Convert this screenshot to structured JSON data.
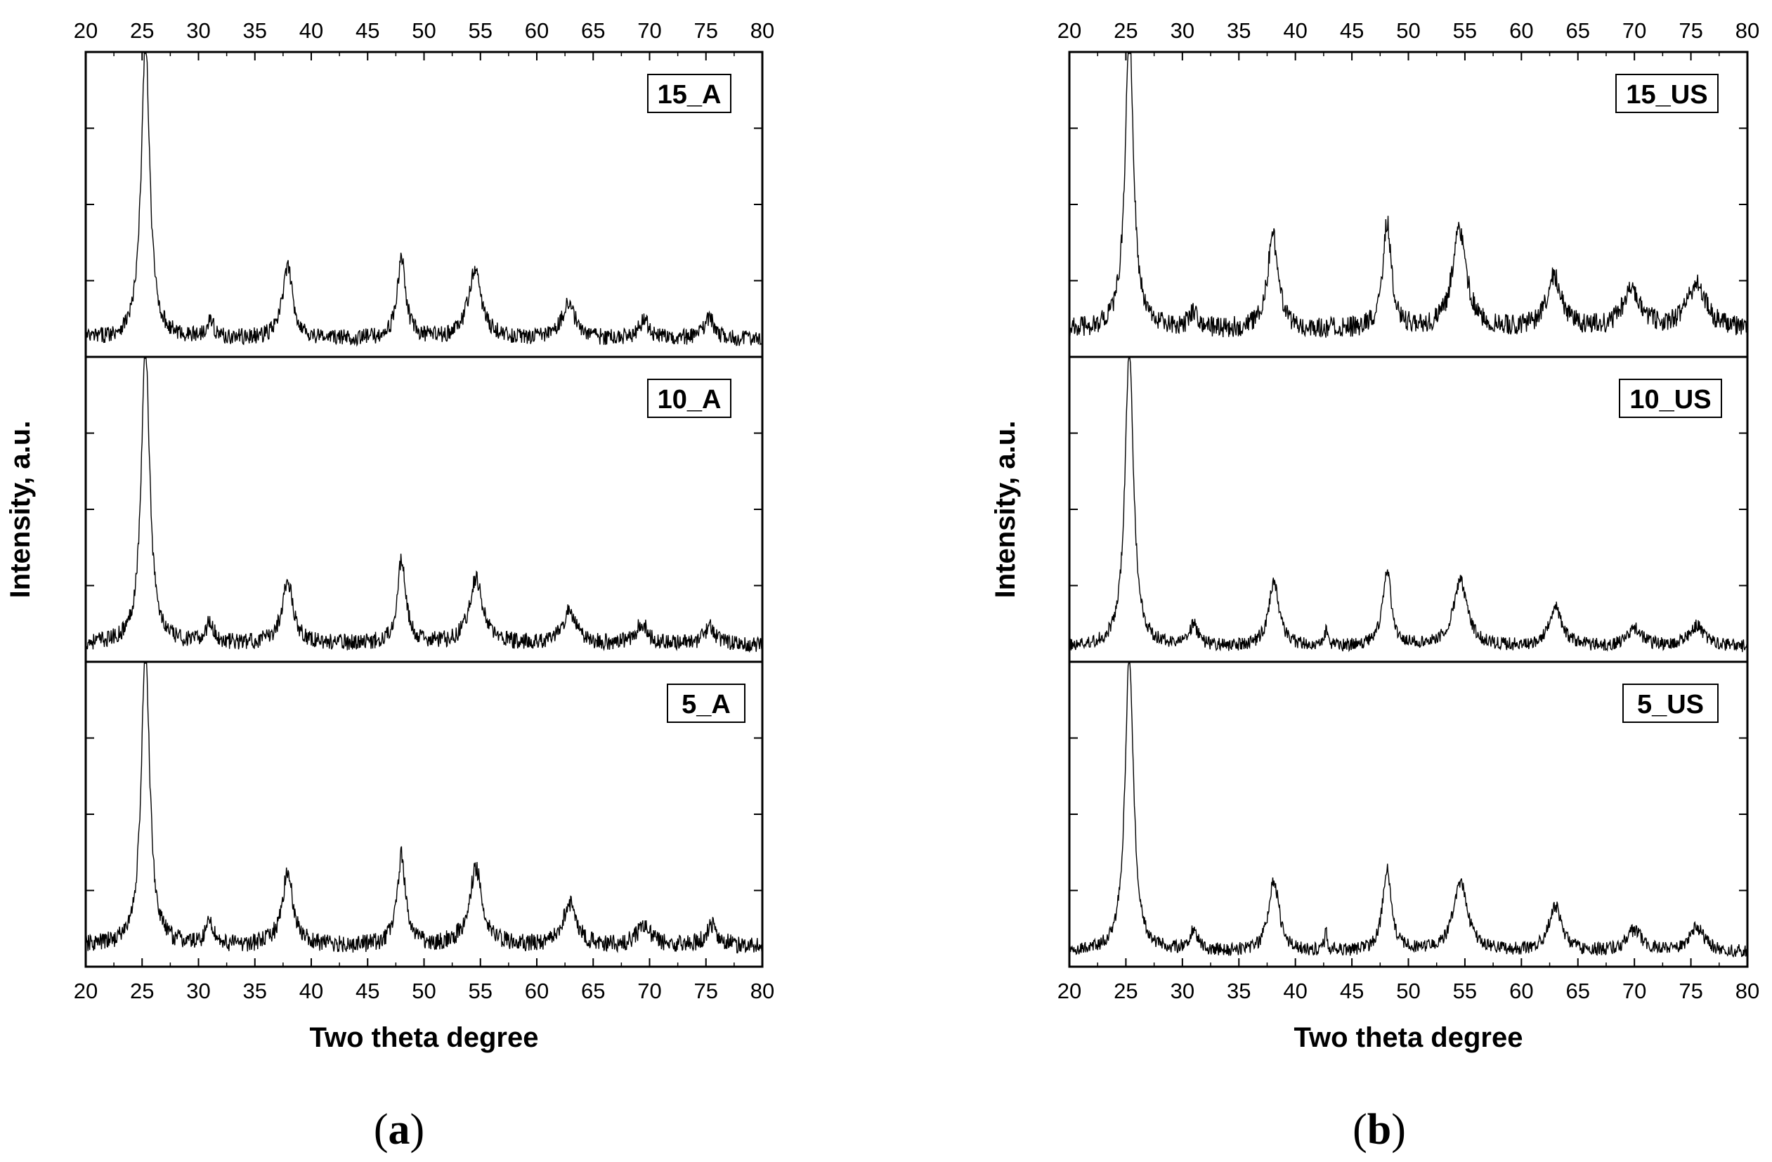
{
  "chart_data": [
    {
      "type": "line",
      "panel": "a",
      "caption": "(a)",
      "caption_parts": {
        "open": "(",
        "letter": "a",
        "close": ")"
      },
      "xlabel": "Two theta degree",
      "ylabel": "Intensity, a.u.",
      "xlim": [
        20,
        80
      ],
      "x_ticks": [
        "20",
        "25",
        "30",
        "35",
        "40",
        "45",
        "50",
        "55",
        "60",
        "65",
        "70",
        "75",
        "80"
      ],
      "y_ticks_labeled": false,
      "series": [
        {
          "name": "15_A",
          "noise": 0.028,
          "baseline": 0.05,
          "peaks": [
            [
              25.3,
              1.0,
              0.45
            ],
            [
              31.0,
              0.06,
              0.4
            ],
            [
              37.9,
              0.24,
              0.55
            ],
            [
              48.0,
              0.27,
              0.45
            ],
            [
              54.5,
              0.23,
              0.7
            ],
            [
              62.8,
              0.12,
              0.7
            ],
            [
              69.5,
              0.06,
              0.6
            ],
            [
              75.3,
              0.07,
              0.5
            ]
          ]
        },
        {
          "name": "10_A",
          "noise": 0.028,
          "baseline": 0.05,
          "peaks": [
            [
              25.3,
              1.0,
              0.45
            ],
            [
              31.0,
              0.07,
              0.4
            ],
            [
              37.9,
              0.21,
              0.6
            ],
            [
              48.0,
              0.28,
              0.45
            ],
            [
              54.6,
              0.22,
              0.7
            ],
            [
              62.9,
              0.11,
              0.7
            ],
            [
              69.3,
              0.07,
              0.6
            ],
            [
              75.3,
              0.06,
              0.5
            ]
          ]
        },
        {
          "name": "5_A",
          "noise": 0.03,
          "baseline": 0.06,
          "peaks": [
            [
              25.3,
              1.0,
              0.45
            ],
            [
              31.0,
              0.08,
              0.4
            ],
            [
              37.9,
              0.24,
              0.6
            ],
            [
              48.0,
              0.3,
              0.45
            ],
            [
              54.6,
              0.26,
              0.7
            ],
            [
              62.9,
              0.14,
              0.7
            ],
            [
              69.5,
              0.07,
              0.7
            ],
            [
              75.5,
              0.07,
              0.6
            ]
          ]
        }
      ]
    },
    {
      "type": "line",
      "panel": "b",
      "caption": "(b)",
      "caption_parts": {
        "open": "(",
        "letter": "b",
        "close": ")"
      },
      "xlabel": "Two theta degree",
      "ylabel": "Intensity, a.u.",
      "xlim": [
        20,
        80
      ],
      "x_ticks": [
        "20",
        "25",
        "30",
        "35",
        "40",
        "45",
        "50",
        "55",
        "60",
        "65",
        "70",
        "75",
        "80"
      ],
      "y_ticks_labeled": false,
      "series": [
        {
          "name": "15_US",
          "noise": 0.035,
          "baseline": 0.08,
          "peaks": [
            [
              25.3,
              1.0,
              0.45
            ],
            [
              31.0,
              0.06,
              0.5
            ],
            [
              38.0,
              0.32,
              0.55
            ],
            [
              48.1,
              0.36,
              0.45
            ],
            [
              54.5,
              0.33,
              0.75
            ],
            [
              62.9,
              0.18,
              0.8
            ],
            [
              69.8,
              0.13,
              1.0
            ],
            [
              75.5,
              0.15,
              1.0
            ]
          ]
        },
        {
          "name": "10_US",
          "noise": 0.022,
          "baseline": 0.04,
          "peaks": [
            [
              25.3,
              1.0,
              0.45
            ],
            [
              31.0,
              0.07,
              0.45
            ],
            [
              38.1,
              0.22,
              0.55
            ],
            [
              42.7,
              0.05,
              0.15
            ],
            [
              48.1,
              0.26,
              0.45
            ],
            [
              54.6,
              0.22,
              0.75
            ],
            [
              63.0,
              0.13,
              0.7
            ],
            [
              70.0,
              0.06,
              0.8
            ],
            [
              75.5,
              0.07,
              0.8
            ]
          ]
        },
        {
          "name": "5_US",
          "noise": 0.022,
          "baseline": 0.04,
          "peaks": [
            [
              25.3,
              1.0,
              0.45
            ],
            [
              31.0,
              0.07,
              0.45
            ],
            [
              38.1,
              0.24,
              0.55
            ],
            [
              42.7,
              0.06,
              0.15
            ],
            [
              48.1,
              0.28,
              0.45
            ],
            [
              54.6,
              0.23,
              0.75
            ],
            [
              63.0,
              0.15,
              0.7
            ],
            [
              70.0,
              0.07,
              0.8
            ],
            [
              75.5,
              0.08,
              0.8
            ]
          ]
        }
      ]
    }
  ]
}
